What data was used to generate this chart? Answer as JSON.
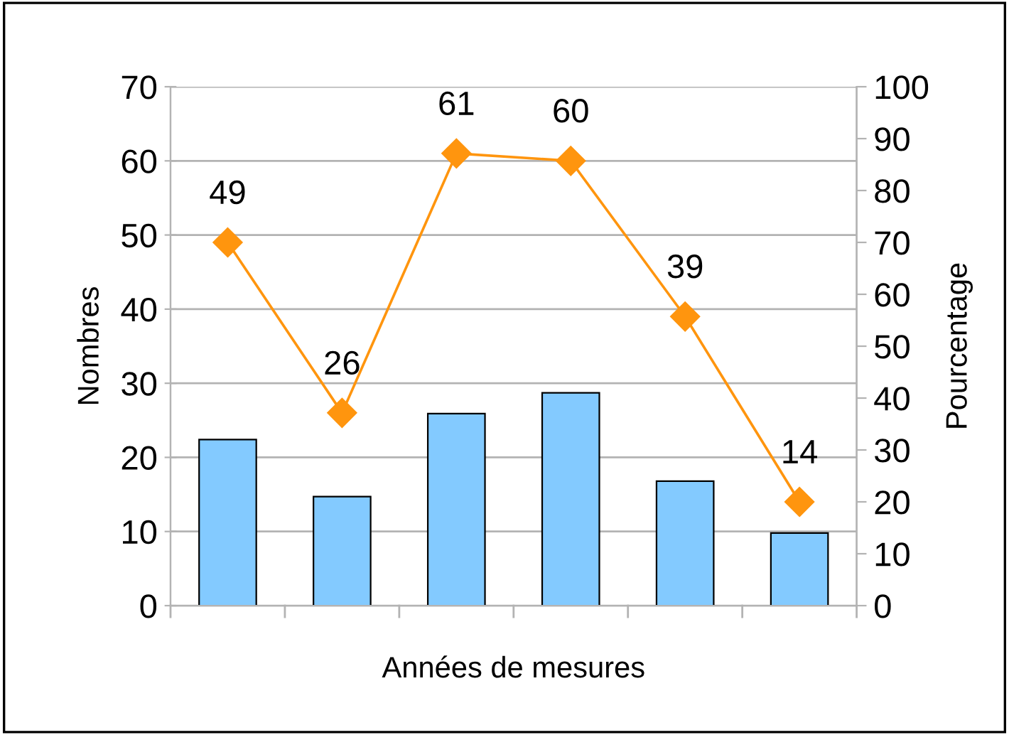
{
  "chart_data": {
    "type": "bar",
    "xlabel": "Années de mesures",
    "ylabel": "Nombres",
    "y2label": "Pourcentage",
    "categories": [
      null,
      null,
      null,
      null,
      null,
      null
    ],
    "series": [
      {
        "color": "#83caff",
        "values": [
          22.4,
          14.7,
          25.9,
          28.7,
          16.8,
          9.8
        ]
      },
      {
        "type": "line",
        "color": "#ff950e",
        "marker": "diamond",
        "values": [
          49,
          26,
          61,
          60,
          39,
          14
        ],
        "value_labels": [
          "49",
          "26",
          "61",
          "60",
          "39",
          "14"
        ]
      }
    ],
    "ylim": [
      0,
      70
    ],
    "yticks": [
      0,
      10,
      20,
      30,
      40,
      50,
      60,
      70
    ],
    "y2lim": [
      0,
      100
    ],
    "y2ticks": [
      0,
      10,
      20,
      30,
      40,
      50,
      60,
      70,
      80,
      90,
      100
    ],
    "grid": "y",
    "legend": false
  }
}
